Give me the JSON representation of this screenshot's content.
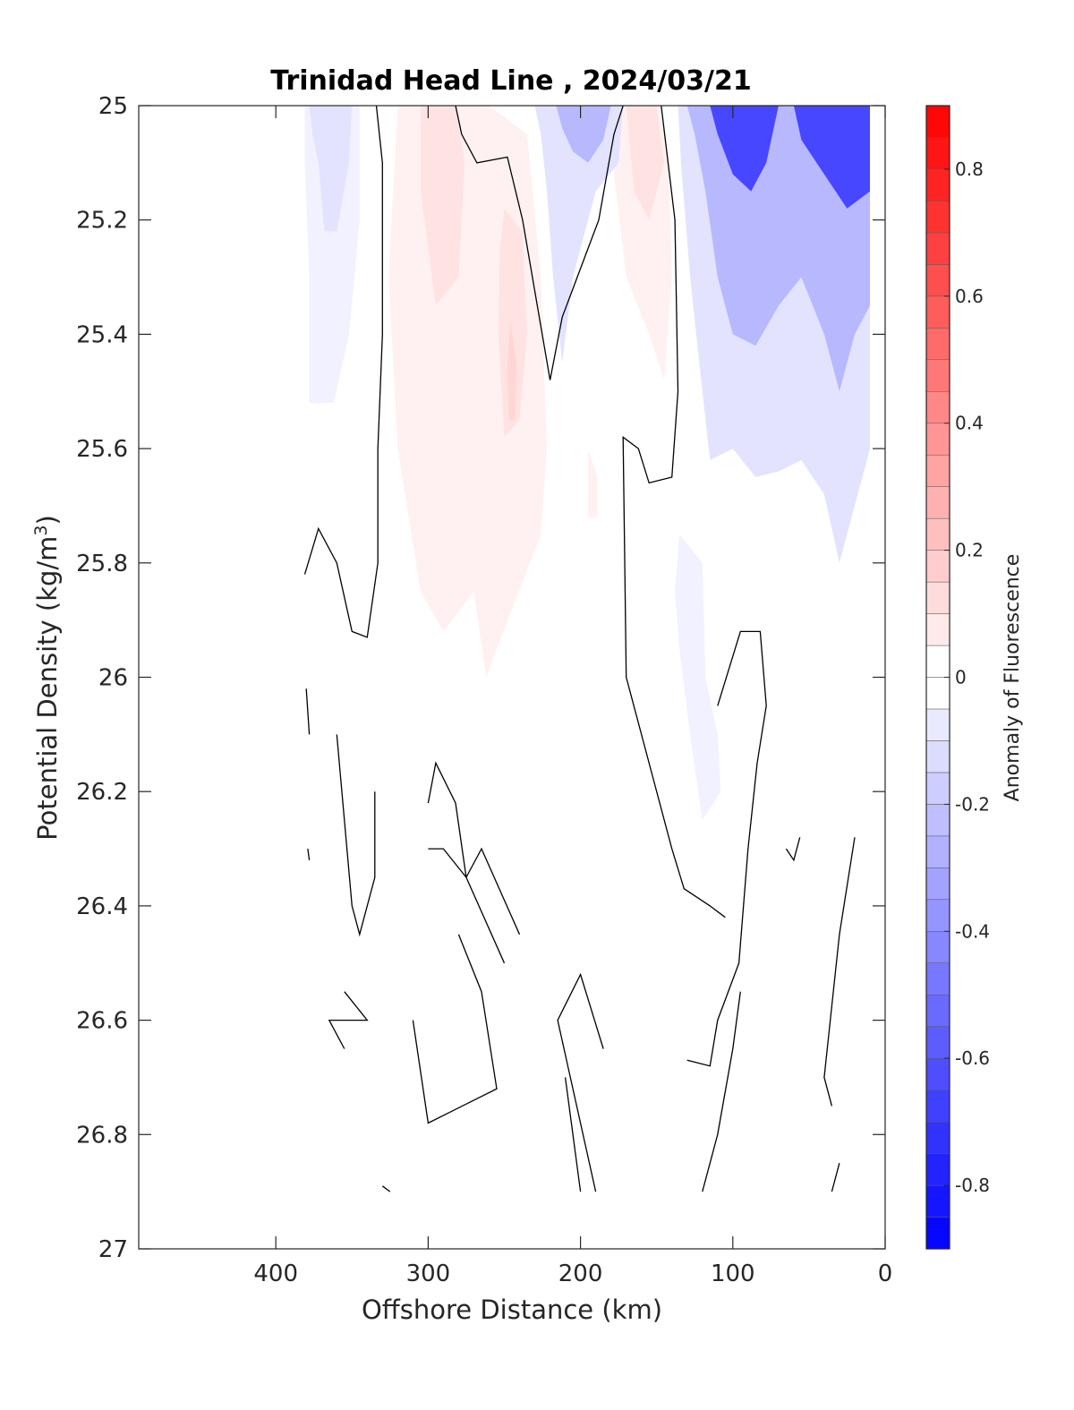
{
  "chart_data": {
    "type": "heatmap",
    "title": "Trinidad Head Line , 2024/03/21",
    "xlabel": "Offshore Distance (km)",
    "ylabel": "Potential Density (kg/m",
    "ylabel_sup": "3",
    "ylabel_close": ")",
    "xlim": [
      490,
      0
    ],
    "ylim": [
      25,
      27
    ],
    "x_reversed": true,
    "y_reversed": true,
    "xticks": [
      400,
      300,
      200,
      100,
      0
    ],
    "xtick_labels": [
      "400",
      "300",
      "200",
      "100",
      "0"
    ],
    "yticks": [
      25,
      25.2,
      25.4,
      25.6,
      25.8,
      26,
      26.2,
      26.4,
      26.6,
      26.8,
      27
    ],
    "ytick_labels": [
      "25",
      "25.2",
      "25.4",
      "25.6",
      "25.8",
      "26",
      "26.2",
      "26.4",
      "26.6",
      "26.8",
      "27"
    ],
    "colorbar": {
      "label": "Anomaly of Fluorescence",
      "range": [
        -0.9,
        0.9
      ],
      "ticks": [
        0.8,
        0.6,
        0.4,
        0.2,
        0,
        -0.2,
        -0.4,
        -0.6,
        -0.8
      ],
      "tick_labels": [
        "0.8",
        "0.6",
        "0.4",
        "0.2",
        "0",
        "-0.2",
        "-0.4",
        "-0.6",
        "-0.8"
      ],
      "levels_step": 0.05,
      "positive_color": "#ff0000",
      "negative_color": "#0000ff",
      "zero_color": "#ffffff"
    },
    "filled_regions": [
      {
        "name": "neg-west",
        "value": -0.08,
        "points": [
          [
            381,
            25
          ],
          [
            345,
            25
          ],
          [
            345,
            25.2
          ],
          [
            352,
            25.4
          ],
          [
            362,
            25.52
          ],
          [
            378,
            25.52
          ],
          [
            378,
            25.3
          ],
          [
            381,
            25.1
          ]
        ]
      },
      {
        "name": "neg-west-core",
        "value": -0.12,
        "points": [
          [
            378,
            25
          ],
          [
            350,
            25
          ],
          [
            352,
            25.1
          ],
          [
            360,
            25.22
          ],
          [
            368,
            25.22
          ],
          [
            372,
            25.1
          ],
          [
            376,
            25.05
          ]
        ]
      },
      {
        "name": "pos-mid",
        "value": 0.08,
        "points": [
          [
            320,
            25
          ],
          [
            282,
            25
          ],
          [
            260,
            25
          ],
          [
            235,
            25.05
          ],
          [
            226,
            25.3
          ],
          [
            222,
            25.6
          ],
          [
            226,
            25.75
          ],
          [
            255,
            25.95
          ],
          [
            262,
            26
          ],
          [
            270,
            25.85
          ],
          [
            290,
            25.92
          ],
          [
            305,
            25.85
          ],
          [
            320,
            25.6
          ],
          [
            326,
            25.3
          ],
          [
            322,
            25.1
          ]
        ]
      },
      {
        "name": "pos-mid-core",
        "value": 0.13,
        "points": [
          [
            305,
            25
          ],
          [
            282,
            25
          ],
          [
            276,
            25.1
          ],
          [
            280,
            25.3
          ],
          [
            295,
            25.35
          ],
          [
            305,
            25.15
          ]
        ]
      },
      {
        "name": "pos-mid-core-2",
        "value": 0.13,
        "points": [
          [
            250,
            25.18
          ],
          [
            238,
            25.22
          ],
          [
            235,
            25.4
          ],
          [
            240,
            25.55
          ],
          [
            250,
            25.58
          ],
          [
            254,
            25.4
          ],
          [
            253,
            25.25
          ]
        ]
      },
      {
        "name": "pos-mid-core-3",
        "value": 0.18,
        "points": [
          [
            246,
            25.38
          ],
          [
            242,
            25.45
          ],
          [
            243,
            25.55
          ],
          [
            247,
            25.55
          ],
          [
            248,
            25.45
          ]
        ]
      },
      {
        "name": "pos-east",
        "value": 0.08,
        "points": [
          [
            178,
            25
          ],
          [
            148,
            25
          ],
          [
            142,
            25.1
          ],
          [
            140,
            25.3
          ],
          [
            145,
            25.48
          ],
          [
            155,
            25.4
          ],
          [
            170,
            25.3
          ],
          [
            178,
            25.12
          ]
        ]
      },
      {
        "name": "pos-east-core",
        "value": 0.14,
        "points": [
          [
            170,
            25
          ],
          [
            150,
            25
          ],
          [
            145,
            25.1
          ],
          [
            155,
            25.2
          ],
          [
            165,
            25.15
          ]
        ]
      },
      {
        "name": "pos-small",
        "value": 0.07,
        "points": [
          [
            195,
            25.6
          ],
          [
            189,
            25.65
          ],
          [
            189,
            25.72
          ],
          [
            195,
            25.72
          ]
        ]
      },
      {
        "name": "neg-trough",
        "value": -0.1,
        "points": [
          [
            230,
            25
          ],
          [
            172,
            25
          ],
          [
            175,
            25.1
          ],
          [
            190,
            25.15
          ],
          [
            205,
            25.3
          ],
          [
            212,
            25.45
          ],
          [
            218,
            25.3
          ],
          [
            222,
            25.15
          ],
          [
            226,
            25.05
          ]
        ]
      },
      {
        "name": "neg-trough-core",
        "value": -0.3,
        "points": [
          [
            216,
            25
          ],
          [
            180,
            25
          ],
          [
            185,
            25.06
          ],
          [
            195,
            25.1
          ],
          [
            205,
            25.08
          ],
          [
            212,
            25.04
          ]
        ]
      },
      {
        "name": "neg-coast",
        "value": -0.12,
        "points": [
          [
            136,
            25
          ],
          [
            10,
            25
          ],
          [
            10,
            25.6
          ],
          [
            20,
            25.7
          ],
          [
            30,
            25.8
          ],
          [
            40,
            25.68
          ],
          [
            55,
            25.62
          ],
          [
            70,
            25.64
          ],
          [
            85,
            25.65
          ],
          [
            100,
            25.6
          ],
          [
            115,
            25.62
          ],
          [
            120,
            25.5
          ],
          [
            128,
            25.3
          ],
          [
            134,
            25.1
          ]
        ]
      },
      {
        "name": "neg-coast-mid",
        "value": -0.3,
        "points": [
          [
            130,
            25
          ],
          [
            10,
            25
          ],
          [
            10,
            25.35
          ],
          [
            20,
            25.4
          ],
          [
            30,
            25.5
          ],
          [
            40,
            25.4
          ],
          [
            55,
            25.3
          ],
          [
            70,
            25.35
          ],
          [
            85,
            25.42
          ],
          [
            100,
            25.4
          ],
          [
            110,
            25.3
          ],
          [
            118,
            25.15
          ],
          [
            125,
            25.05
          ]
        ]
      },
      {
        "name": "neg-coast-core-1",
        "value": -0.65,
        "points": [
          [
            115,
            25
          ],
          [
            70,
            25
          ],
          [
            78,
            25.1
          ],
          [
            88,
            25.15
          ],
          [
            100,
            25.12
          ],
          [
            110,
            25.05
          ]
        ]
      },
      {
        "name": "neg-coast-core-2",
        "value": -0.7,
        "points": [
          [
            60,
            25
          ],
          [
            10,
            25
          ],
          [
            10,
            25.15
          ],
          [
            25,
            25.18
          ],
          [
            40,
            25.12
          ],
          [
            55,
            25.06
          ]
        ]
      },
      {
        "name": "neg-deep",
        "value": -0.08,
        "points": [
          [
            135,
            25.75
          ],
          [
            120,
            25.8
          ],
          [
            118,
            26.0
          ],
          [
            110,
            26.1
          ],
          [
            108,
            26.2
          ],
          [
            120,
            26.25
          ],
          [
            128,
            26.1
          ],
          [
            135,
            25.95
          ],
          [
            138,
            25.85
          ]
        ]
      }
    ],
    "contour_lines": [
      [
        [
          334,
          25
        ],
        [
          330,
          25.1
        ],
        [
          330,
          25.4
        ],
        [
          333,
          25.6
        ],
        [
          333,
          25.8
        ],
        [
          340,
          25.93
        ],
        [
          350,
          25.92
        ],
        [
          360,
          25.8
        ],
        [
          372,
          25.74
        ],
        [
          381,
          25.82
        ]
      ],
      [
        [
          282,
          25
        ],
        [
          278,
          25.05
        ],
        [
          268,
          25.1
        ],
        [
          248,
          25.09
        ],
        [
          238,
          25.2
        ],
        [
          220,
          25.48
        ],
        [
          212,
          25.37
        ],
        [
          188,
          25.2
        ],
        [
          178,
          25.05
        ],
        [
          172,
          25
        ]
      ],
      [
        [
          147,
          25
        ],
        [
          138,
          25.2
        ],
        [
          136,
          25.5
        ],
        [
          140,
          25.65
        ],
        [
          155,
          25.66
        ],
        [
          162,
          25.6
        ],
        [
          172,
          25.58
        ],
        [
          170,
          26.0
        ],
        [
          165,
          26.05
        ],
        [
          140,
          26.3
        ],
        [
          132,
          26.37
        ],
        [
          115,
          26.4
        ],
        [
          105,
          26.42
        ]
      ],
      [
        [
          110,
          26.05
        ],
        [
          95,
          25.92
        ],
        [
          82,
          25.92
        ],
        [
          78,
          26.05
        ],
        [
          84,
          26.15
        ],
        [
          90,
          26.3
        ],
        [
          96,
          26.5
        ],
        [
          110,
          26.6
        ],
        [
          115,
          26.68
        ],
        [
          130,
          26.67
        ]
      ],
      [
        [
          380,
          26.02
        ],
        [
          378,
          26.1
        ]
      ],
      [
        [
          379,
          26.3
        ],
        [
          378,
          26.32
        ]
      ],
      [
        [
          360,
          26.1
        ],
        [
          350,
          26.4
        ],
        [
          345,
          26.45
        ],
        [
          335,
          26.35
        ],
        [
          335,
          26.2
        ]
      ],
      [
        [
          300,
          26.22
        ],
        [
          295,
          26.15
        ],
        [
          282,
          26.22
        ],
        [
          275,
          26.35
        ],
        [
          290,
          26.3
        ],
        [
          300,
          26.3
        ]
      ],
      [
        [
          240,
          26.45
        ],
        [
          265,
          26.3
        ],
        [
          275,
          26.35
        ],
        [
          250,
          26.5
        ]
      ],
      [
        [
          280,
          26.45
        ],
        [
          265,
          26.55
        ],
        [
          255,
          26.72
        ],
        [
          300,
          26.78
        ],
        [
          310,
          26.6
        ]
      ],
      [
        [
          355,
          26.55
        ],
        [
          340,
          26.6
        ],
        [
          365,
          26.6
        ],
        [
          355,
          26.65
        ]
      ],
      [
        [
          210,
          26.7
        ],
        [
          200,
          26.9
        ]
      ],
      [
        [
          185,
          26.65
        ],
        [
          200,
          26.52
        ],
        [
          215,
          26.6
        ],
        [
          190,
          26.9
        ]
      ],
      [
        [
          65,
          26.3
        ],
        [
          60,
          26.32
        ],
        [
          56,
          26.28
        ]
      ],
      [
        [
          20,
          26.28
        ],
        [
          30,
          26.45
        ],
        [
          40,
          26.7
        ],
        [
          35,
          26.75
        ]
      ],
      [
        [
          120,
          26.9
        ],
        [
          110,
          26.8
        ],
        [
          100,
          26.65
        ],
        [
          95,
          26.55
        ]
      ],
      [
        [
          330,
          26.89
        ],
        [
          325,
          26.9
        ]
      ],
      [
        [
          30,
          26.85
        ],
        [
          35,
          26.9
        ]
      ]
    ]
  }
}
